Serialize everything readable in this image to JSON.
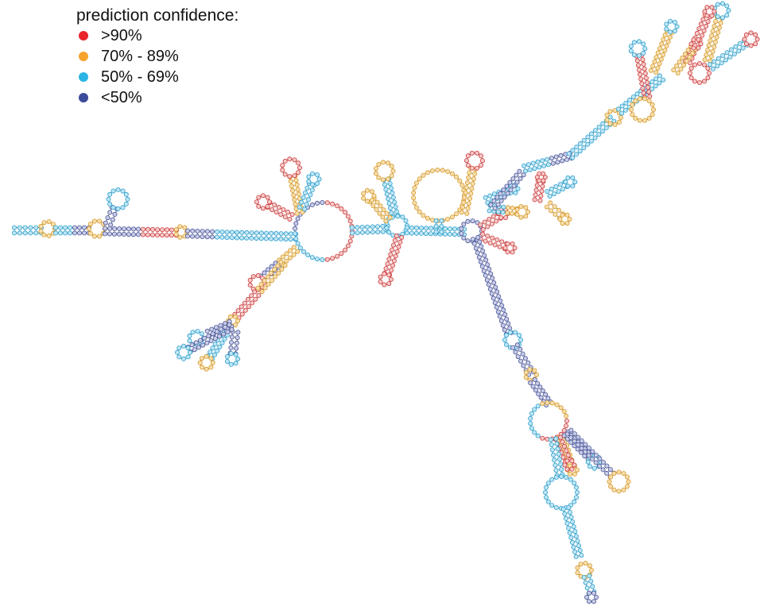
{
  "legend": {
    "title": "prediction confidence:",
    "items": [
      {
        "label": ">90%",
        "color": "#e8262c"
      },
      {
        "label": "70% - 89%",
        "color": "#f6a22b"
      },
      {
        "label": "50% - 69%",
        "color": "#2cb4e6"
      },
      {
        "label": "<50%",
        "color": "#3c4b9a"
      }
    ]
  },
  "palette": {
    "red_fill": "#f6c9c9",
    "red_stroke": "#cc3b3b",
    "orange_fill": "#f9dfac",
    "orange_stroke": "#d49a2e",
    "blue_fill": "#bfe7f6",
    "blue_stroke": "#2e9fcc",
    "navy_fill": "#c9cde6",
    "navy_stroke": "#4a5599",
    "backbone": "#333333"
  }
}
